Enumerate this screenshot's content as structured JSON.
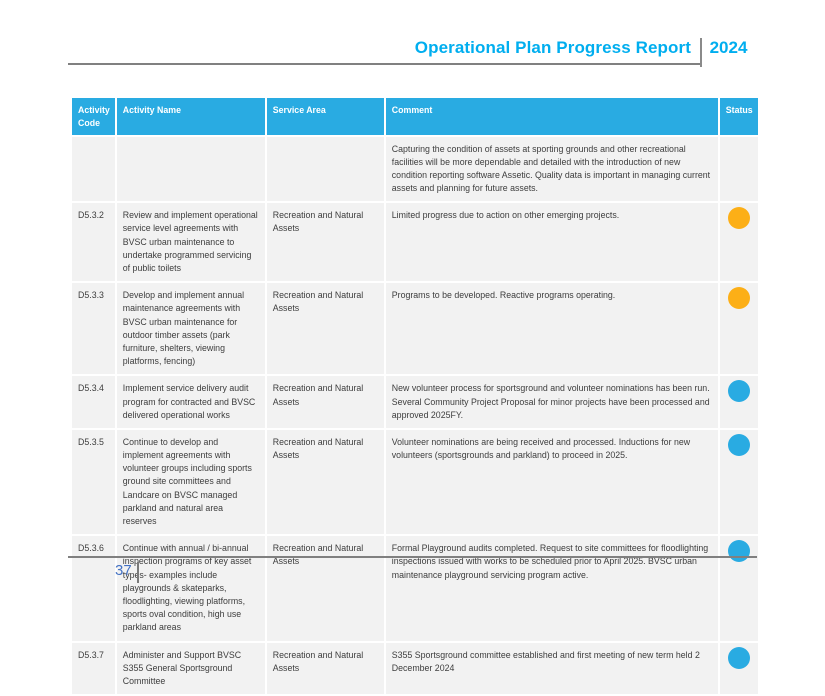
{
  "page": {
    "title": "Operational Plan Progress Report",
    "year": "2024",
    "page_number": "37"
  },
  "colors": {
    "title_blue": "#00AEEF",
    "table_header_blue": "#29ABE2",
    "status_amber": "#FCAF17",
    "status_blue": "#29ABE2",
    "row_background": "#F2F2F2",
    "rule_gray": "#808080",
    "page_number_blue": "#4472C4"
  },
  "table": {
    "headers": {
      "code": "Activity Code",
      "name": "Activity Name",
      "service_area": "Service Area",
      "comment": "Comment",
      "status": "Status"
    },
    "rows": [
      {
        "code": "",
        "name": "",
        "service_area": "",
        "comment": "Capturing the condition of assets at sporting grounds and other recreational facilities will be more dependable and detailed with the introduction of new condition reporting software Assetic. Quality data is important in managing current assets and planning for future assets.",
        "status": "none"
      },
      {
        "code": "D5.3.2",
        "name": "Review and implement operational service level agreements with BVSC urban maintenance to undertake programmed servicing of public toilets",
        "service_area": "Recreation and Natural Assets",
        "comment": "Limited progress due to action on other emerging projects.",
        "status": "amber"
      },
      {
        "code": "D5.3.3",
        "name": "Develop and implement annual maintenance agreements with BVSC urban maintenance for outdoor timber assets (park furniture, shelters, viewing platforms, fencing)",
        "service_area": "Recreation and Natural Assets",
        "comment": "Programs to be developed. Reactive programs operating.",
        "status": "amber"
      },
      {
        "code": "D5.3.4",
        "name": "Implement service delivery audit program for contracted and BVSC delivered operational works",
        "service_area": "Recreation and Natural Assets",
        "comment": "New volunteer process for sportsground and volunteer nominations has been run. Several Community Project Proposal for minor projects have been processed and approved 2025FY.",
        "status": "blue"
      },
      {
        "code": "D5.3.5",
        "name": "Continue to develop and implement agreements with volunteer groups including sports ground site committees and Landcare on BVSC managed parkland and natural area reserves",
        "service_area": "Recreation and Natural Assets",
        "comment": "Volunteer nominations are being received and processed. Inductions for new volunteers (sportsgrounds and parkland) to proceed in 2025.",
        "status": "blue"
      },
      {
        "code": "D5.3.6",
        "name": "Continue with annual / bi-annual inspection programs of key asset types- examples include playgrounds & skateparks, floodlighting, viewing platforms, sports oval condition, high use parkland areas",
        "service_area": "Recreation and Natural Assets",
        "comment": "Formal Playground audits completed. Request to site committees for floodlighting inspections issued with works to be scheduled prior to April 2025. BVSC urban maintenance playground servicing program active.",
        "status": "blue"
      },
      {
        "code": "D5.3.7",
        "name": "Administer and Support BVSC S355 General Sportsground Committee",
        "service_area": "Recreation and Natural Assets",
        "comment": "S355 Sportsground committee established and first meeting of new term held 2 December 2024",
        "status": "blue"
      }
    ]
  }
}
